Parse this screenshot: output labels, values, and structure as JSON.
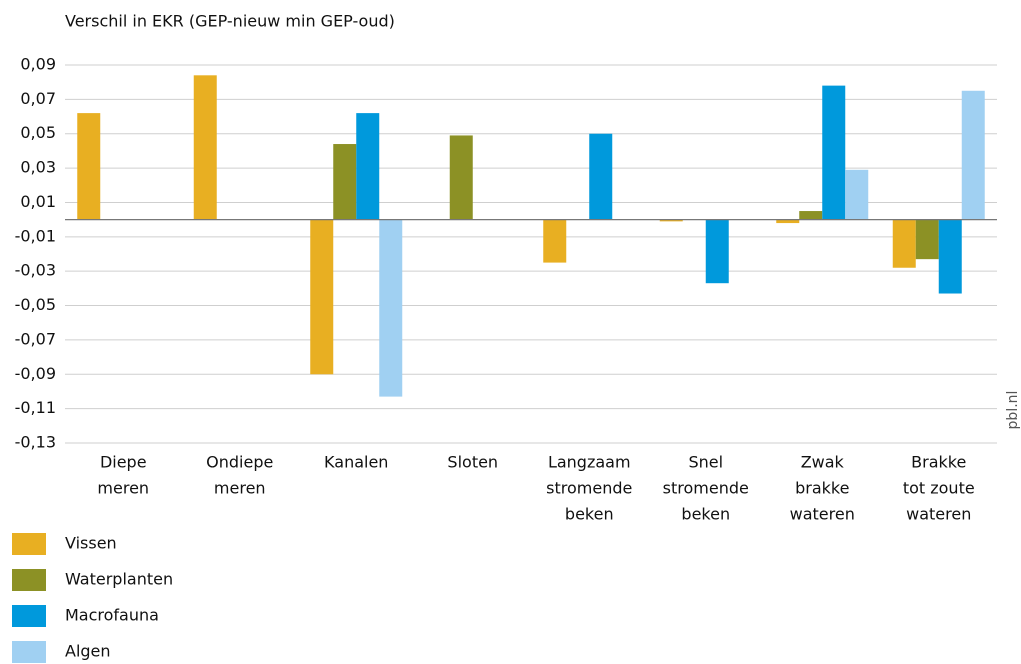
{
  "chart_data": {
    "type": "bar",
    "title": "Verschil in EKR (GEP-nieuw min GEP-oud)",
    "source": "pbl.nl",
    "categories": [
      [
        "Diepe",
        "meren"
      ],
      [
        "Ondiepe",
        "meren"
      ],
      [
        "Kanalen"
      ],
      [
        "Sloten"
      ],
      [
        "Langzaam",
        "stromende",
        "beken"
      ],
      [
        "Snel",
        "stromende",
        "beken"
      ],
      [
        "Zwak",
        "brakke",
        "wateren"
      ],
      [
        "Brakke",
        "tot zoute",
        "wateren"
      ]
    ],
    "series": [
      {
        "name": "Vissen",
        "color": "#e8af22",
        "values": [
          0.062,
          0.084,
          -0.09,
          null,
          -0.025,
          -0.001,
          -0.002,
          -0.028
        ]
      },
      {
        "name": "Waterplanten",
        "color": "#8c9125",
        "values": [
          null,
          null,
          0.044,
          0.049,
          null,
          null,
          0.005,
          -0.023
        ]
      },
      {
        "name": "Macrofauna",
        "color": "#0099dc",
        "values": [
          null,
          null,
          0.062,
          null,
          0.05,
          -0.037,
          0.078,
          -0.043
        ]
      },
      {
        "name": "Algen",
        "color": "#a0d0f2",
        "values": [
          null,
          null,
          -0.103,
          null,
          null,
          null,
          0.029,
          0.075
        ]
      }
    ],
    "ylim": [
      -0.13,
      0.09
    ],
    "yticks": [
      {
        "value": 0.09,
        "label": "0,09"
      },
      {
        "value": 0.07,
        "label": "0,07"
      },
      {
        "value": 0.05,
        "label": "0,05"
      },
      {
        "value": 0.03,
        "label": "0,03"
      },
      {
        "value": 0.01,
        "label": "0,01"
      },
      {
        "value": -0.01,
        "label": "-0,01"
      },
      {
        "value": -0.03,
        "label": "-0,03"
      },
      {
        "value": -0.05,
        "label": "-0,05"
      },
      {
        "value": -0.07,
        "label": "-0,07"
      },
      {
        "value": -0.09,
        "label": "-0,09"
      },
      {
        "value": -0.11,
        "label": "-0,11"
      },
      {
        "value": -0.13,
        "label": "-0,13"
      }
    ],
    "grid": true
  }
}
